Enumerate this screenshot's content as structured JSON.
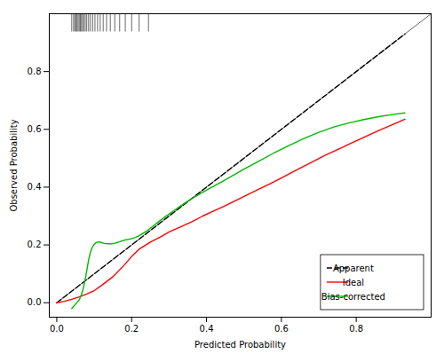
{
  "chart_data": {
    "type": "line",
    "xlabel": "Predicted Probability",
    "ylabel": "Observed Probability",
    "xlim": [
      -0.02,
      1.0
    ],
    "ylim": [
      -0.05,
      1.0
    ],
    "xticks": [
      {
        "value": 0.0,
        "label": "0.0"
      },
      0.2,
      0.4,
      0.6,
      0.8
    ],
    "yticks": [
      {
        "value": 0.0,
        "label": "0.0"
      },
      0.2,
      0.4,
      0.6,
      0.8
    ],
    "grid": false,
    "legend": "lower right",
    "series": [
      {
        "x": [
          0,
          1
        ],
        "values": [
          0,
          1
        ],
        "color": "#555555",
        "line_style": "solid"
      },
      {
        "name": "Apparent",
        "x": [
          0,
          0.93
        ],
        "values": [
          0,
          0.93
        ],
        "color": "#000000",
        "line_style": "dashed"
      },
      {
        "name": "Ideal",
        "x": [
          0.0,
          0.02,
          0.04,
          0.06,
          0.08,
          0.1,
          0.12,
          0.15,
          0.18,
          0.2,
          0.22,
          0.25,
          0.28,
          0.3,
          0.33,
          0.36,
          0.39,
          0.42,
          0.45,
          0.48,
          0.51,
          0.54,
          0.57,
          0.6,
          0.63,
          0.66,
          0.69,
          0.72,
          0.75,
          0.78,
          0.82,
          0.86,
          0.9,
          0.93
        ],
        "values": [
          0.0,
          0.005,
          0.012,
          0.02,
          0.03,
          0.042,
          0.06,
          0.09,
          0.13,
          0.16,
          0.185,
          0.21,
          0.23,
          0.245,
          0.262,
          0.28,
          0.3,
          0.318,
          0.336,
          0.355,
          0.374,
          0.393,
          0.412,
          0.432,
          0.452,
          0.472,
          0.492,
          0.512,
          0.53,
          0.548,
          0.572,
          0.596,
          0.618,
          0.635
        ],
        "color": "#ff0000",
        "line_style": "solid"
      },
      {
        "name": "Bias-corrected",
        "x": [
          0.04,
          0.05,
          0.06,
          0.065,
          0.07,
          0.075,
          0.08,
          0.085,
          0.09,
          0.095,
          0.1,
          0.105,
          0.11,
          0.115,
          0.12,
          0.125,
          0.13,
          0.135,
          0.14,
          0.145,
          0.15,
          0.155,
          0.16,
          0.165,
          0.17,
          0.175,
          0.18,
          0.185,
          0.19,
          0.195,
          0.2,
          0.21,
          0.22,
          0.23,
          0.24,
          0.25,
          0.27,
          0.29,
          0.31,
          0.33,
          0.35,
          0.38,
          0.41,
          0.44,
          0.47,
          0.5,
          0.54,
          0.58,
          0.62,
          0.66,
          0.7,
          0.74,
          0.78,
          0.82,
          0.86,
          0.9,
          0.93
        ],
        "values": [
          -0.02,
          -0.005,
          0.01,
          0.025,
          0.045,
          0.075,
          0.11,
          0.148,
          0.175,
          0.192,
          0.202,
          0.208,
          0.21,
          0.21,
          0.208,
          0.206,
          0.205,
          0.204,
          0.204,
          0.204,
          0.205,
          0.206,
          0.208,
          0.21,
          0.212,
          0.214,
          0.216,
          0.218,
          0.219,
          0.22,
          0.222,
          0.226,
          0.232,
          0.24,
          0.248,
          0.258,
          0.278,
          0.298,
          0.316,
          0.334,
          0.352,
          0.375,
          0.397,
          0.418,
          0.44,
          0.462,
          0.49,
          0.518,
          0.544,
          0.568,
          0.59,
          0.608,
          0.622,
          0.634,
          0.644,
          0.652,
          0.657
        ],
        "color": "#00bb00",
        "line_style": "solid"
      },
      {
        "type": "rug",
        "x": [
          0.04,
          0.045,
          0.048,
          0.051,
          0.054,
          0.057,
          0.06,
          0.063,
          0.066,
          0.069,
          0.072,
          0.076,
          0.08,
          0.085,
          0.09,
          0.096,
          0.102,
          0.109,
          0.116,
          0.124,
          0.133,
          0.143,
          0.155,
          0.168,
          0.183,
          0.2,
          0.22,
          0.245
        ],
        "color": "#444444"
      }
    ]
  }
}
